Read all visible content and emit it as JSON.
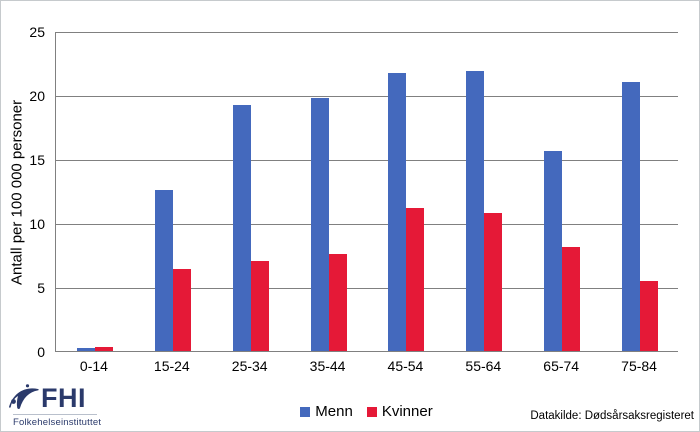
{
  "chart_data": {
    "type": "bar",
    "title": "",
    "xlabel": "",
    "ylabel": "Antall per 100 000 personer",
    "categories": [
      "0-14",
      "15-24",
      "25-34",
      "35-44",
      "45-54",
      "55-64",
      "65-74",
      "75-84"
    ],
    "series": [
      {
        "name": "Menn",
        "color": "#4469bd",
        "values": [
          0.2,
          12.6,
          19.2,
          19.8,
          21.7,
          21.9,
          15.6,
          21.0
        ]
      },
      {
        "name": "Kvinner",
        "color": "#e51937",
        "values": [
          0.3,
          6.4,
          7.0,
          7.6,
          11.2,
          10.8,
          8.1,
          5.5
        ]
      }
    ],
    "ylim": [
      0,
      25
    ],
    "yticks": [
      0,
      5,
      10,
      15,
      20,
      25
    ],
    "grid": true,
    "legend_position": "bottom",
    "gridline_color": "#808080"
  },
  "footer": {
    "source_label": "Datakilde: Dødsårsaksregisteret"
  },
  "logo": {
    "acronym": "FHI",
    "name": "Folkehelseinstituttet",
    "color": "#2b3a6b"
  }
}
